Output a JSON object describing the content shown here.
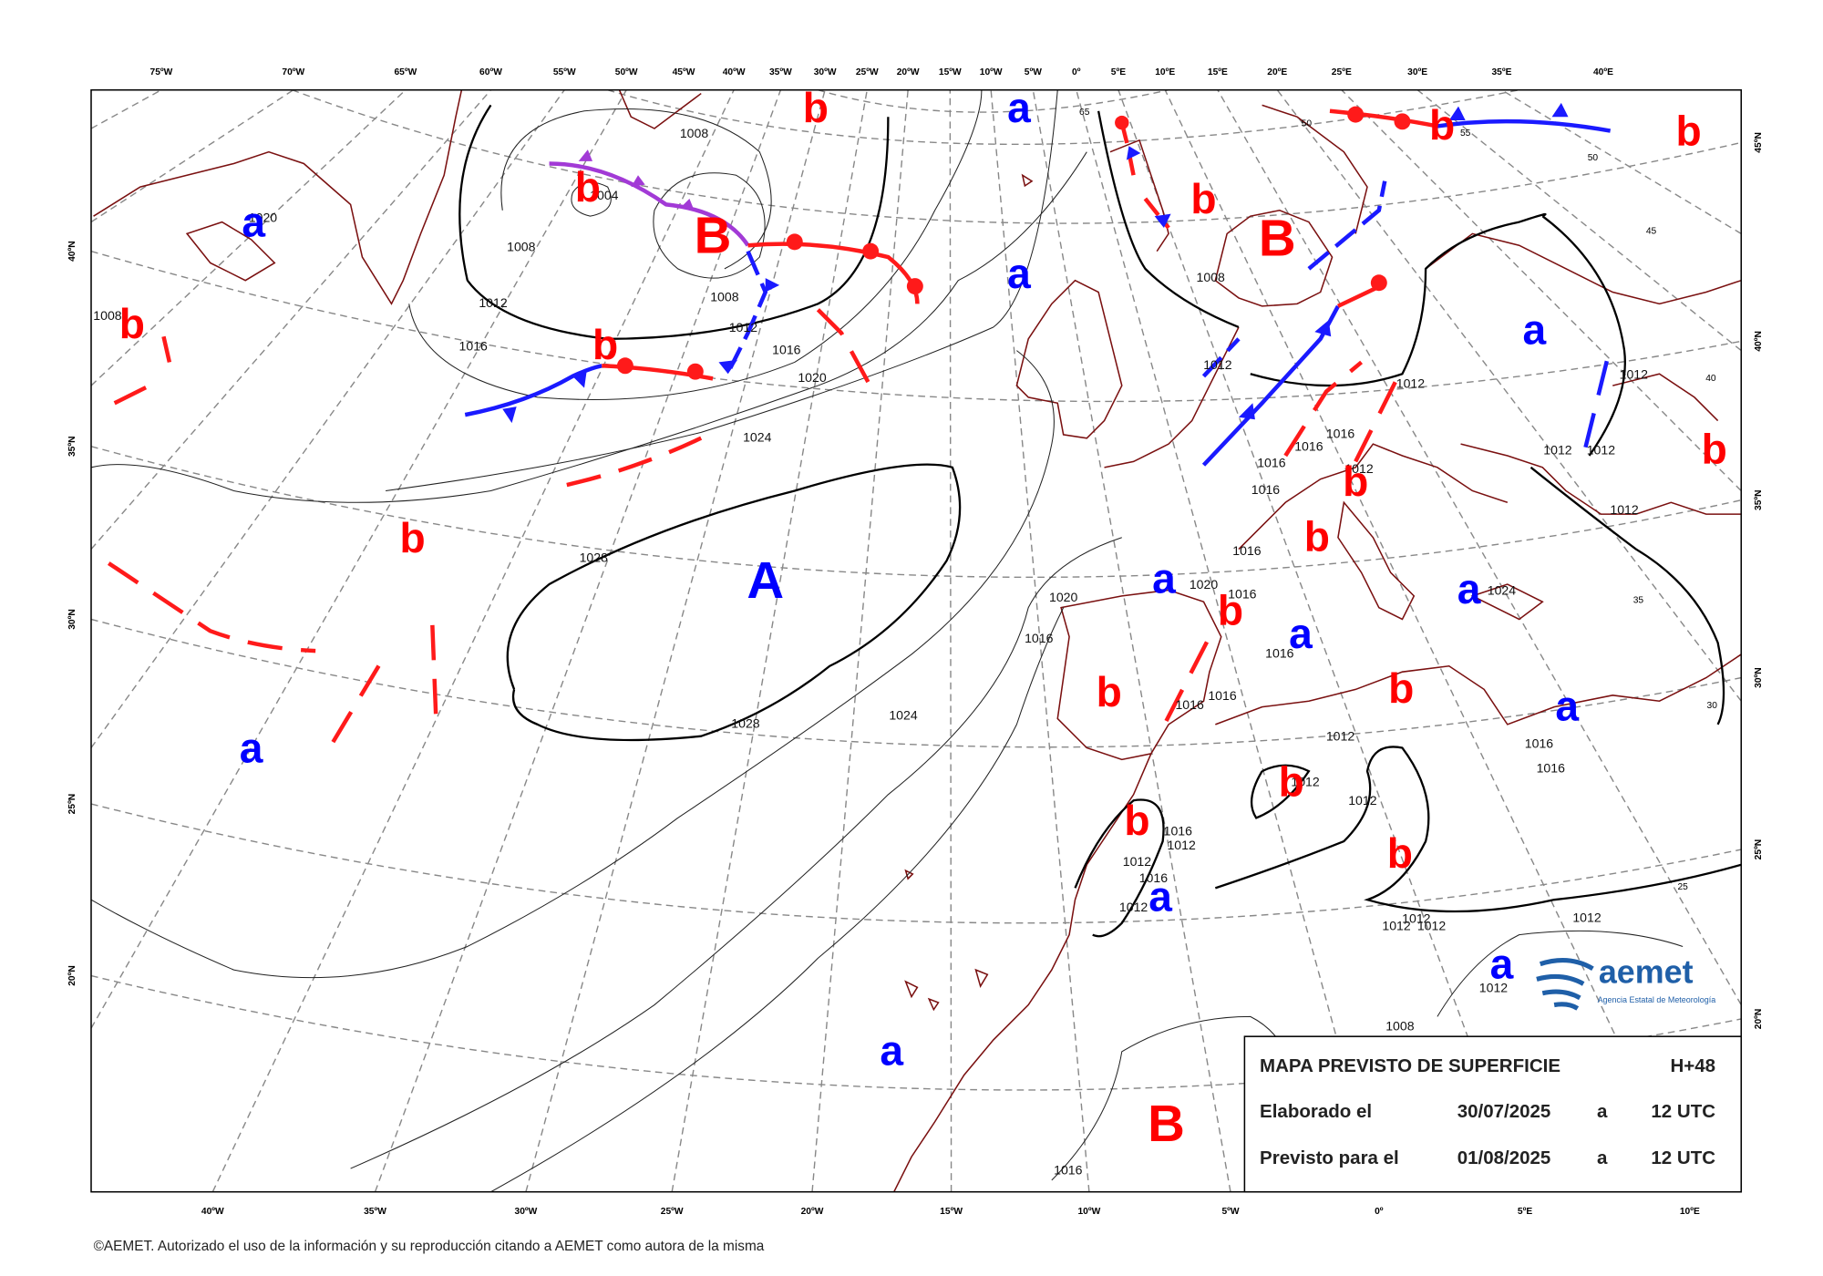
{
  "top_axis": [
    "75ºW",
    "70ºW",
    "65ºW",
    "60ºW",
    "55ºW",
    "50ºW",
    "45ºW",
    "40ºW",
    "35ºW",
    "30ºW",
    "25ºW",
    "20ºW",
    "15ºW",
    "10ºW",
    "5ºW",
    "0º",
    "5ºE",
    "10ºE",
    "15ºE",
    "20ºE",
    "25ºE",
    "30ºE",
    "35ºE",
    "40ºE"
  ],
  "bottom_axis": [
    "40ºW",
    "35ºW",
    "30ºW",
    "25ºW",
    "20ºW",
    "15ºW",
    "10ºW",
    "5ºW",
    "0º",
    "5ºE",
    "10ºE"
  ],
  "left_axis": [
    "40ºN",
    "35ºN",
    "30ºN",
    "25ºN",
    "20ºN"
  ],
  "right_axis": [
    "45ºN",
    "40ºN",
    "35ºN",
    "30ºN",
    "25ºN",
    "20ºN"
  ],
  "grid_labels": [
    "65",
    "50",
    "55",
    "50",
    "45",
    "40",
    "35",
    "30",
    "25"
  ],
  "pressure_centers": [
    {
      "label": "b",
      "color": "#ff0000"
    },
    {
      "label": "a",
      "color": "#0000ff"
    },
    {
      "label": "a",
      "color": "#0000ff"
    },
    {
      "label": "b",
      "color": "#ff0000"
    },
    {
      "label": "B",
      "color": "#ff0000"
    },
    {
      "label": "a",
      "color": "#0000ff"
    },
    {
      "label": "b",
      "color": "#ff0000"
    },
    {
      "label": "B",
      "color": "#ff0000"
    },
    {
      "label": "b",
      "color": "#ff0000"
    },
    {
      "label": "b",
      "color": "#ff0000"
    },
    {
      "label": "b",
      "color": "#ff0000"
    },
    {
      "label": "b",
      "color": "#ff0000"
    },
    {
      "label": "a",
      "color": "#0000ff"
    },
    {
      "label": "b",
      "color": "#ff0000"
    },
    {
      "label": "b",
      "color": "#ff0000"
    },
    {
      "label": "b",
      "color": "#ff0000"
    },
    {
      "label": "b",
      "color": "#ff0000"
    },
    {
      "label": "A",
      "color": "#0000ff"
    },
    {
      "label": "a",
      "color": "#0000ff"
    },
    {
      "label": "b",
      "color": "#ff0000"
    },
    {
      "label": "a",
      "color": "#0000ff"
    },
    {
      "label": "a",
      "color": "#0000ff"
    },
    {
      "label": "a",
      "color": "#0000ff"
    },
    {
      "label": "b",
      "color": "#ff0000"
    },
    {
      "label": "b",
      "color": "#ff0000"
    },
    {
      "label": "a",
      "color": "#0000ff"
    },
    {
      "label": "b",
      "color": "#ff0000"
    },
    {
      "label": "b",
      "color": "#ff0000"
    },
    {
      "label": "b",
      "color": "#ff0000"
    },
    {
      "label": "a",
      "color": "#0000ff"
    },
    {
      "label": "a",
      "color": "#0000ff"
    },
    {
      "label": "a",
      "color": "#0000ff"
    },
    {
      "label": "B",
      "color": "#ff0000"
    }
  ],
  "isobar_labels": [
    "1008",
    "1004",
    "1008",
    "1008",
    "1012",
    "1012",
    "1016",
    "1016",
    "1020",
    "1024",
    "1028",
    "1028",
    "1024",
    "1020",
    "1016",
    "1008",
    "1012",
    "1012",
    "1016",
    "1016",
    "1016",
    "1016",
    "1012",
    "1016",
    "1020",
    "1016",
    "1016",
    "1016",
    "1016",
    "1012",
    "1012",
    "1012",
    "1016",
    "1012",
    "1012",
    "1016",
    "1012",
    "1016",
    "1016",
    "1012",
    "1012",
    "1012",
    "1012",
    "1012",
    "1012",
    "1012",
    "1012",
    "1012",
    "1008",
    "1016",
    "1024",
    "1020",
    "1008"
  ],
  "info_box": {
    "title": "MAPA PREVISTO DE SUPERFICIE",
    "lead_time": "H+48",
    "rows": [
      [
        "Elaborado el",
        "30/07/2025",
        "a",
        "12 UTC"
      ],
      [
        "Previsto para el",
        "01/08/2025",
        "a",
        "12 UTC"
      ]
    ]
  },
  "logo": {
    "name": "aemet",
    "subtitle": "Agencia Estatal de Meteorología"
  },
  "footer": "©AEMET. Autorizado el uso de la información y su reproducción citando a AEMET como autora de la misma"
}
